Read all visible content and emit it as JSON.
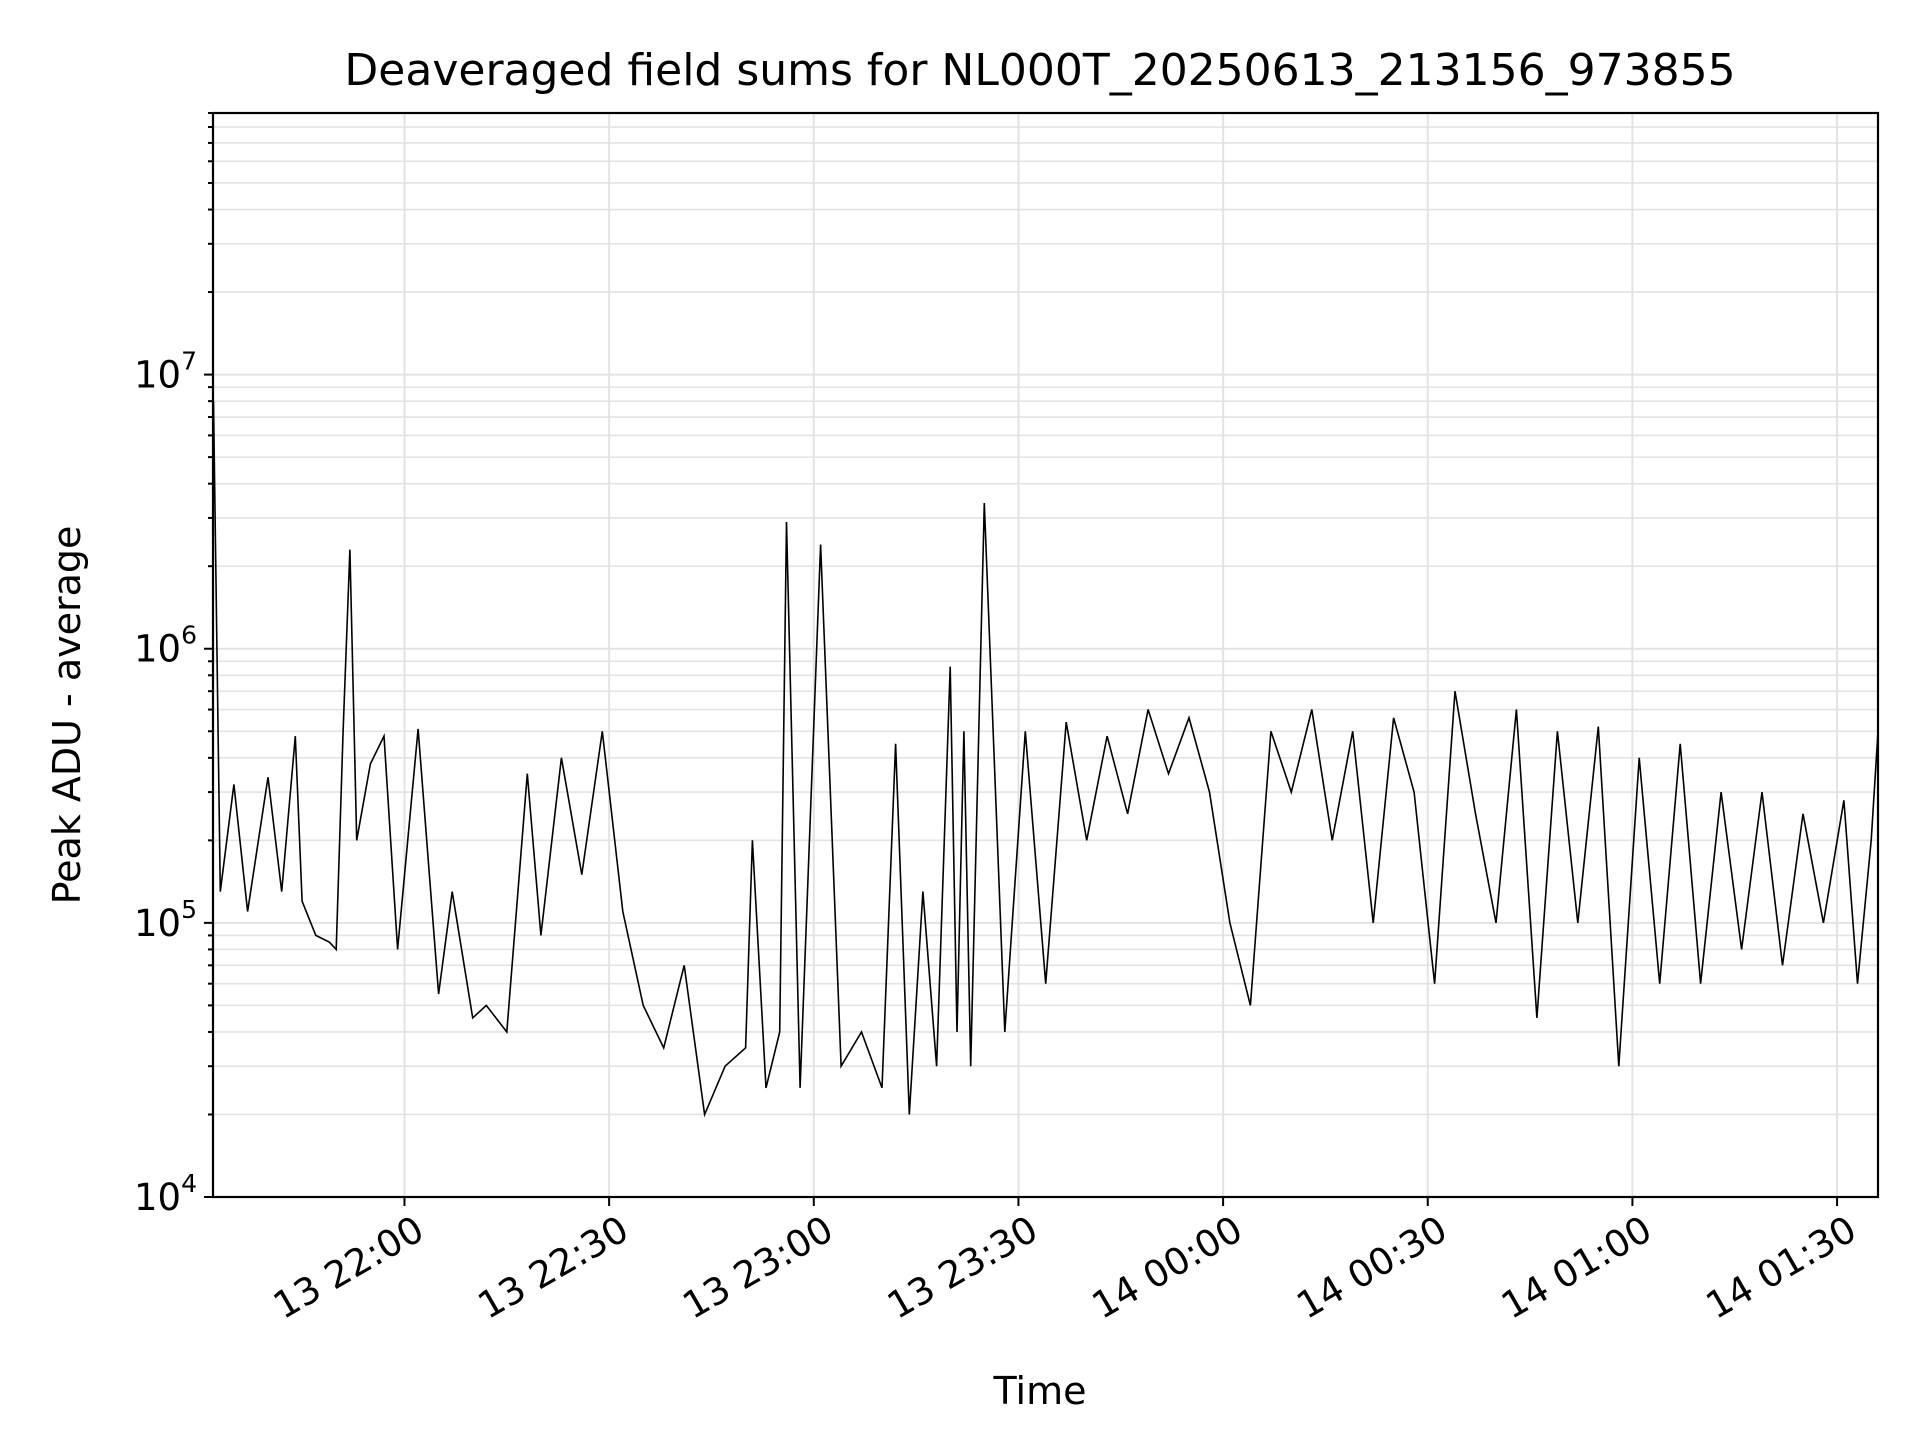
{
  "chart_data": {
    "type": "line",
    "title": "Deaveraged field sums for NL000T_20250613_213156_973855",
    "xlabel": "Time",
    "ylabel": "Peak ADU - average",
    "yscale": "log",
    "ylim": [
      10000,
      90000000
    ],
    "xlim": [
      "2025-06-13 21:31:56",
      "2025-06-14 01:36:00"
    ],
    "grid": true,
    "line_color": "#000000",
    "grid_color": "#e3e3e3",
    "x_ticks": [
      {
        "value": "2025-06-13 22:00",
        "label": "13 22:00"
      },
      {
        "value": "2025-06-13 22:30",
        "label": "13 22:30"
      },
      {
        "value": "2025-06-13 23:00",
        "label": "13 23:00"
      },
      {
        "value": "2025-06-13 23:30",
        "label": "13 23:30"
      },
      {
        "value": "2025-06-14 00:00",
        "label": "14 00:00"
      },
      {
        "value": "2025-06-14 00:30",
        "label": "14 00:30"
      },
      {
        "value": "2025-06-14 01:00",
        "label": "14 01:00"
      },
      {
        "value": "2025-06-14 01:30",
        "label": "14 01:30"
      }
    ],
    "y_ticks": [
      {
        "value": 10000,
        "base": "10",
        "exp": "4"
      },
      {
        "value": 100000,
        "base": "10",
        "exp": "5"
      },
      {
        "value": 1000000,
        "base": "10",
        "exp": "6"
      },
      {
        "value": 10000000,
        "base": "10",
        "exp": "7"
      }
    ],
    "series": [
      {
        "x": [
          "2025-06-13 21:32",
          "2025-06-13 21:33",
          "2025-06-13 21:35",
          "2025-06-13 21:37",
          "2025-06-13 21:40",
          "2025-06-13 21:42",
          "2025-06-13 21:44",
          "2025-06-13 21:45",
          "2025-06-13 21:47",
          "2025-06-13 21:49",
          "2025-06-13 21:50",
          "2025-06-13 21:51",
          "2025-06-13 21:52",
          "2025-06-13 21:53",
          "2025-06-13 21:55",
          "2025-06-13 21:57",
          "2025-06-13 21:59",
          "2025-06-13 22:02",
          "2025-06-13 22:05",
          "2025-06-13 22:07",
          "2025-06-13 22:10",
          "2025-06-13 22:12",
          "2025-06-13 22:15",
          "2025-06-13 22:18",
          "2025-06-13 22:20",
          "2025-06-13 22:23",
          "2025-06-13 22:26",
          "2025-06-13 22:29",
          "2025-06-13 22:32",
          "2025-06-13 22:35",
          "2025-06-13 22:38",
          "2025-06-13 22:41",
          "2025-06-13 22:44",
          "2025-06-13 22:47",
          "2025-06-13 22:50",
          "2025-06-13 22:51",
          "2025-06-13 22:53",
          "2025-06-13 22:55",
          "2025-06-13 22:56",
          "2025-06-13 22:58",
          "2025-06-13 23:01",
          "2025-06-13 23:04",
          "2025-06-13 23:07",
          "2025-06-13 23:10",
          "2025-06-13 23:12",
          "2025-06-13 23:14",
          "2025-06-13 23:16",
          "2025-06-13 23:18",
          "2025-06-13 23:20",
          "2025-06-13 23:21",
          "2025-06-13 23:22",
          "2025-06-13 23:23",
          "2025-06-13 23:25",
          "2025-06-13 23:28",
          "2025-06-13 23:31",
          "2025-06-13 23:34",
          "2025-06-13 23:37",
          "2025-06-13 23:40",
          "2025-06-13 23:43",
          "2025-06-13 23:46",
          "2025-06-13 23:49",
          "2025-06-13 23:52",
          "2025-06-13 23:55",
          "2025-06-13 23:58",
          "2025-06-14 00:01",
          "2025-06-14 00:04",
          "2025-06-14 00:07",
          "2025-06-14 00:10",
          "2025-06-14 00:13",
          "2025-06-14 00:16",
          "2025-06-14 00:19",
          "2025-06-14 00:22",
          "2025-06-14 00:25",
          "2025-06-14 00:28",
          "2025-06-14 00:31",
          "2025-06-14 00:34",
          "2025-06-14 00:37",
          "2025-06-14 00:40",
          "2025-06-14 00:43",
          "2025-06-14 00:46",
          "2025-06-14 00:49",
          "2025-06-14 00:52",
          "2025-06-14 00:55",
          "2025-06-14 00:58",
          "2025-06-14 01:01",
          "2025-06-14 01:04",
          "2025-06-14 01:07",
          "2025-06-14 01:10",
          "2025-06-14 01:13",
          "2025-06-14 01:16",
          "2025-06-14 01:19",
          "2025-06-14 01:22",
          "2025-06-14 01:25",
          "2025-06-14 01:28",
          "2025-06-14 01:31",
          "2025-06-14 01:33",
          "2025-06-14 01:35",
          "2025-06-14 01:36"
        ],
        "y": [
          8000000,
          130000,
          320000,
          110000,
          340000,
          130000,
          480000,
          120000,
          90000,
          85000,
          80000,
          500000,
          2300000,
          200000,
          380000,
          480000,
          80000,
          510000,
          55000,
          130000,
          45000,
          50000,
          40000,
          350000,
          90000,
          400000,
          150000,
          500000,
          110000,
          50000,
          35000,
          70000,
          20000,
          30000,
          35000,
          200000,
          25000,
          40000,
          2900000,
          25000,
          2400000,
          30000,
          40000,
          25000,
          450000,
          20000,
          130000,
          30000,
          860000,
          40000,
          500000,
          30000,
          3400000,
          40000,
          500000,
          60000,
          540000,
          200000,
          480000,
          250000,
          600000,
          350000,
          560000,
          300000,
          100000,
          50000,
          500000,
          300000,
          600000,
          200000,
          500000,
          100000,
          560000,
          300000,
          60000,
          700000,
          250000,
          100000,
          600000,
          45000,
          500000,
          100000,
          520000,
          30000,
          400000,
          60000,
          450000,
          60000,
          300000,
          80000,
          300000,
          70000,
          250000,
          100000,
          280000,
          60000,
          200000,
          500000
        ]
      }
    ]
  }
}
